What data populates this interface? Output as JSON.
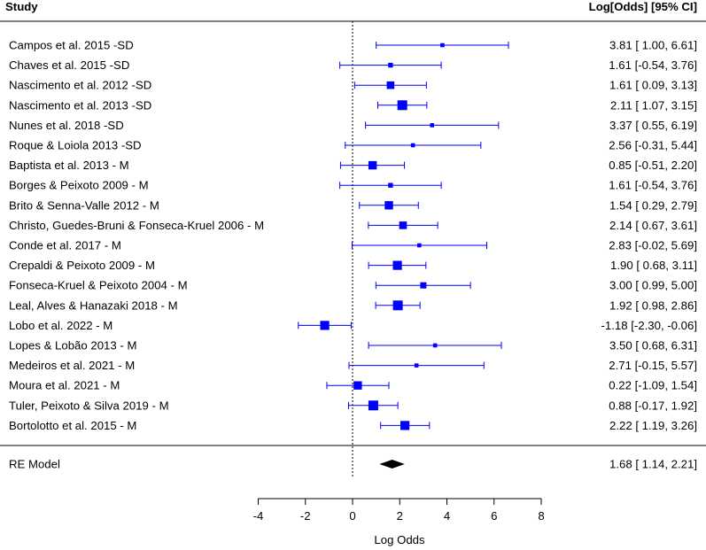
{
  "chart_data": {
    "type": "forest",
    "header_left": "Study",
    "header_right": "Log[Odds] [95% CI]",
    "xlabel": "Log Odds",
    "xlim": [
      -4,
      8
    ],
    "xticks": [
      "-4",
      "-2",
      "0",
      "2",
      "4",
      "6",
      "8"
    ],
    "xtick_values": [
      -4,
      -2,
      0,
      2,
      4,
      6,
      8
    ],
    "reference_line": 0,
    "marker_color": "#0000ff",
    "studies": [
      {
        "label": "Campos et al. 2015 -SD",
        "est": 3.81,
        "lo": 1.0,
        "hi": 6.61,
        "text": "3.81 [ 1.00,  6.61]",
        "weight": 0.2
      },
      {
        "label": "Chaves et al. 2015 -SD",
        "est": 1.61,
        "lo": -0.54,
        "hi": 3.76,
        "text": "1.61 [-0.54,  3.76]",
        "weight": 0.3
      },
      {
        "label": "Nascimento et al. 2012 -SD",
        "est": 1.61,
        "lo": 0.09,
        "hi": 3.13,
        "text": "1.61 [ 0.09,  3.13]",
        "weight": 0.7
      },
      {
        "label": "Nascimento et al. 2013 -SD",
        "est": 2.11,
        "lo": 1.07,
        "hi": 3.15,
        "text": "2.11 [ 1.07,  3.15]",
        "weight": 1.0
      },
      {
        "label": "Nunes et al. 2018 -SD",
        "est": 3.37,
        "lo": 0.55,
        "hi": 6.19,
        "text": "3.37 [ 0.55,  6.19]",
        "weight": 0.2
      },
      {
        "label": "Roque & Loiola 2013 -SD",
        "est": 2.56,
        "lo": -0.31,
        "hi": 5.44,
        "text": "2.56 [-0.31,  5.44]",
        "weight": 0.2
      },
      {
        "label": "Baptista et al. 2013 - M",
        "est": 0.85,
        "lo": -0.51,
        "hi": 2.2,
        "text": "0.85 [-0.51,  2.20]",
        "weight": 0.8
      },
      {
        "label": "Borges & Peixoto 2009 - M",
        "est": 1.61,
        "lo": -0.54,
        "hi": 3.76,
        "text": "1.61 [-0.54,  3.76]",
        "weight": 0.3
      },
      {
        "label": "Brito & Senna-Valle 2012 - M",
        "est": 1.54,
        "lo": 0.29,
        "hi": 2.79,
        "text": "1.54 [ 0.29,  2.79]",
        "weight": 0.8
      },
      {
        "label": "Christo, Guedes-Bruni & Fonseca-Kruel 2006 - M",
        "est": 2.14,
        "lo": 0.67,
        "hi": 3.61,
        "text": "2.14 [ 0.67,  3.61]",
        "weight": 0.7
      },
      {
        "label": "Conde et al. 2017 - M",
        "est": 2.83,
        "lo": -0.02,
        "hi": 5.69,
        "text": "2.83 [-0.02,  5.69]",
        "weight": 0.2
      },
      {
        "label": "Crepaldi & Peixoto 2009 - M",
        "est": 1.9,
        "lo": 0.68,
        "hi": 3.11,
        "text": "1.90 [ 0.68,  3.11]",
        "weight": 0.9
      },
      {
        "label": "Fonseca-Kruel & Peixoto 2004 - M",
        "est": 3.0,
        "lo": 0.99,
        "hi": 5.0,
        "text": "3.00 [ 0.99,  5.00]",
        "weight": 0.5
      },
      {
        "label": "Leal, Alves & Hanazaki 2018 - M",
        "est": 1.92,
        "lo": 0.98,
        "hi": 2.86,
        "text": "1.92 [ 0.98,  2.86]",
        "weight": 1.0
      },
      {
        "label": "Lobo et al. 2022 - M",
        "est": -1.18,
        "lo": -2.3,
        "hi": -0.06,
        "text": "-1.18 [-2.30, -0.06]",
        "weight": 0.9
      },
      {
        "label": "Lopes & Lobão 2013 - M",
        "est": 3.5,
        "lo": 0.68,
        "hi": 6.31,
        "text": "3.50 [ 0.68,  6.31]",
        "weight": 0.2
      },
      {
        "label": "Medeiros et al. 2021 - M",
        "est": 2.71,
        "lo": -0.15,
        "hi": 5.57,
        "text": "2.71 [-0.15,  5.57]",
        "weight": 0.2
      },
      {
        "label": "Moura et al. 2021 - M",
        "est": 0.22,
        "lo": -1.09,
        "hi": 1.54,
        "text": "0.22 [-1.09,  1.54]",
        "weight": 0.8
      },
      {
        "label": "Tuler, Peixoto & Silva 2019 - M",
        "est": 0.88,
        "lo": -0.17,
        "hi": 1.92,
        "text": "0.88 [-0.17,  1.92]",
        "weight": 1.0
      },
      {
        "label": "Bortolotto et al. 2015 - M",
        "est": 2.22,
        "lo": 1.19,
        "hi": 3.26,
        "text": "2.22 [ 1.19,  3.26]",
        "weight": 0.9
      }
    ],
    "summary": {
      "label": "RE Model",
      "est": 1.68,
      "lo": 1.14,
      "hi": 2.21,
      "text": "1.68 [ 1.14,  2.21]"
    }
  }
}
